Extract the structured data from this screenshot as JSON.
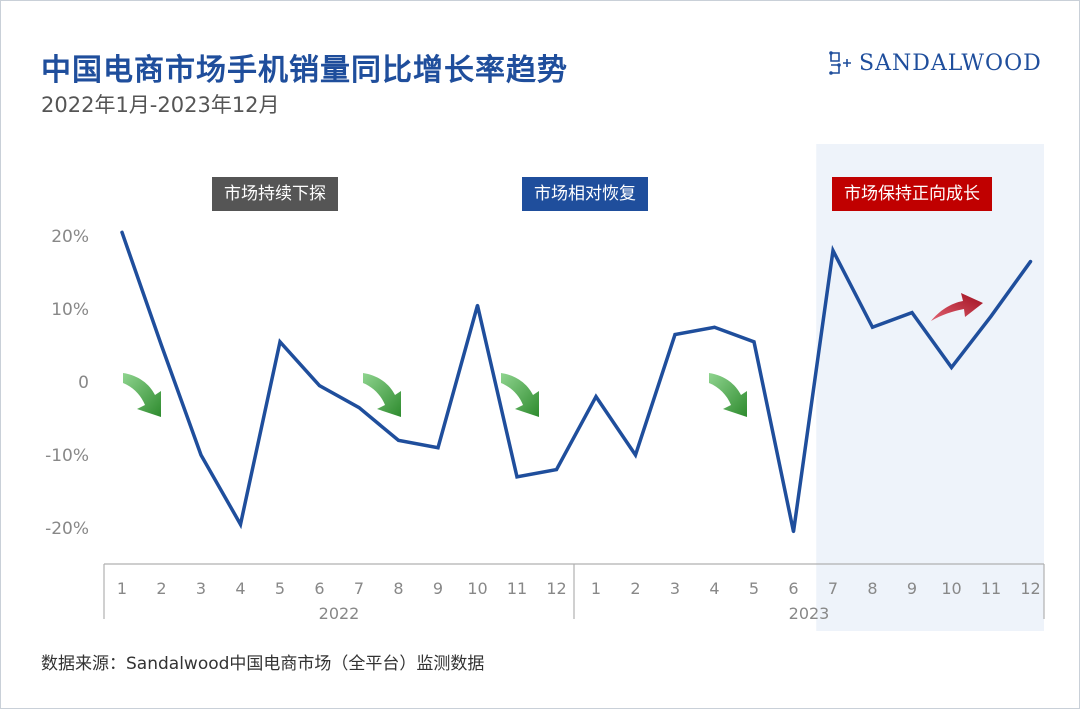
{
  "header": {
    "title": "中国电商市场手机销量同比增长率趋势",
    "subtitle": "2022年1月-2023年12月"
  },
  "brand": {
    "name": "SANDALWOOD",
    "icon": "sandalwood-logo-icon"
  },
  "footer": {
    "source": "数据来源：Sandalwood中国电商市场（全平台）监测数据"
  },
  "phases": [
    {
      "label": "市场持续下探",
      "color": "#555555"
    },
    {
      "label": "市场相对恢复",
      "color": "#1f4e9c"
    },
    {
      "label": "市场保持正向成长",
      "color": "#c00000"
    }
  ],
  "chart_data": {
    "type": "line",
    "x_months": [
      "1",
      "2",
      "3",
      "4",
      "5",
      "6",
      "7",
      "8",
      "9",
      "10",
      "11",
      "12",
      "1",
      "2",
      "3",
      "4",
      "5",
      "6",
      "7",
      "8",
      "9",
      "10",
      "11",
      "12"
    ],
    "x_years": [
      {
        "label": "2022",
        "start": 0,
        "end": 11
      },
      {
        "label": "2023",
        "start": 12,
        "end": 23
      }
    ],
    "series": [
      {
        "values": [
          20.5,
          5.0,
          -10.0,
          -19.5,
          5.5,
          -0.5,
          -3.5,
          -8.0,
          -9.0,
          10.5,
          -13.0,
          -12.0,
          -2.0,
          -10.0,
          6.5,
          7.5,
          5.5,
          -20.5,
          18.0,
          7.5,
          9.5,
          2.0,
          9.0,
          16.5
        ],
        "color": "#1f4e9c"
      }
    ],
    "yticks": [
      20,
      10,
      0,
      -10,
      -20
    ],
    "ytick_labels": [
      "20%",
      "10%",
      "0",
      "-10%",
      "-20%"
    ],
    "ylim": [
      -23,
      23
    ],
    "highlight_range": [
      18,
      23
    ],
    "highlight_color": "#eef3fa",
    "down_arrow_color": "#2e8b2e",
    "up_arrow_color": "#a01020"
  }
}
